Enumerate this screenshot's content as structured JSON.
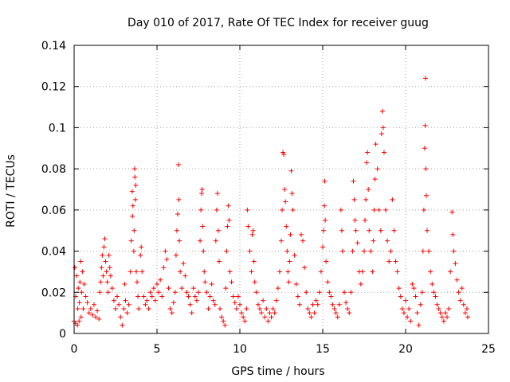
{
  "chart_data": {
    "type": "scatter",
    "title": "Day 010 of 2017, Rate Of TEC Index for receiver guug",
    "xlabel": "GPS time / hours",
    "ylabel": "ROTI / TECUs",
    "xlim": [
      0,
      25
    ],
    "ylim": [
      0,
      0.14
    ],
    "x_ticks": [
      0,
      5,
      10,
      15,
      20,
      25
    ],
    "x_tick_labels": [
      "0",
      "5",
      "10",
      "15",
      "20",
      "25"
    ],
    "y_ticks": [
      0,
      0.02,
      0.04,
      0.06,
      0.08,
      0.1,
      0.12,
      0.14
    ],
    "y_tick_labels": [
      "0",
      "0.02",
      "0.04",
      "0.06",
      "0.08",
      "0.1",
      "0.12",
      "0.14"
    ],
    "grid": true,
    "legend": "none",
    "marker": "+",
    "color": "#ff0000",
    "series": [
      {
        "values": [
          [
            0.0,
            0.006
          ],
          [
            0.05,
            0.032
          ],
          [
            0.08,
            0.005
          ],
          [
            0.1,
            0.018
          ],
          [
            0.15,
            0.028
          ],
          [
            0.2,
            0.004
          ],
          [
            0.22,
            0.012
          ],
          [
            0.25,
            0.022
          ],
          [
            0.3,
            0.006
          ],
          [
            0.32,
            0.015
          ],
          [
            0.35,
            0.025
          ],
          [
            0.4,
            0.035
          ],
          [
            0.42,
            0.008
          ],
          [
            0.45,
            0.02
          ],
          [
            0.5,
            0.03
          ],
          [
            0.55,
            0.012
          ],
          [
            0.6,
            0.024
          ],
          [
            0.7,
            0.018
          ],
          [
            0.8,
            0.015
          ],
          [
            0.9,
            0.01
          ],
          [
            1.0,
            0.012
          ],
          [
            1.1,
            0.009
          ],
          [
            1.2,
            0.014
          ],
          [
            1.3,
            0.008
          ],
          [
            1.4,
            0.011
          ],
          [
            1.5,
            0.007
          ],
          [
            1.55,
            0.02
          ],
          [
            1.6,
            0.025
          ],
          [
            1.65,
            0.032
          ],
          [
            1.7,
            0.038
          ],
          [
            1.75,
            0.028
          ],
          [
            1.8,
            0.042
          ],
          [
            1.85,
            0.046
          ],
          [
            1.9,
            0.035
          ],
          [
            1.95,
            0.03
          ],
          [
            2.0,
            0.025
          ],
          [
            2.05,
            0.02
          ],
          [
            2.1,
            0.038
          ],
          [
            2.15,
            0.032
          ],
          [
            2.2,
            0.028
          ],
          [
            2.3,
            0.022
          ],
          [
            2.4,
            0.016
          ],
          [
            2.5,
            0.012
          ],
          [
            2.6,
            0.018
          ],
          [
            2.7,
            0.014
          ],
          [
            2.8,
            0.008
          ],
          [
            2.9,
            0.004
          ],
          [
            3.0,
            0.012
          ],
          [
            3.05,
            0.024
          ],
          [
            3.1,
            0.016
          ],
          [
            3.2,
            0.01
          ],
          [
            3.3,
            0.014
          ],
          [
            3.4,
            0.03
          ],
          [
            3.45,
            0.045
          ],
          [
            3.5,
            0.069
          ],
          [
            3.52,
            0.057
          ],
          [
            3.55,
            0.062
          ],
          [
            3.6,
            0.04
          ],
          [
            3.62,
            0.05
          ],
          [
            3.65,
            0.08
          ],
          [
            3.67,
            0.076
          ],
          [
            3.7,
            0.065
          ],
          [
            3.72,
            0.072
          ],
          [
            3.75,
            0.03
          ],
          [
            3.8,
            0.025
          ],
          [
            3.85,
            0.018
          ],
          [
            3.9,
            0.012
          ],
          [
            4.0,
            0.038
          ],
          [
            4.05,
            0.042
          ],
          [
            4.1,
            0.03
          ],
          [
            4.2,
            0.018
          ],
          [
            4.3,
            0.014
          ],
          [
            4.4,
            0.016
          ],
          [
            4.5,
            0.012
          ],
          [
            4.6,
            0.02
          ],
          [
            4.7,
            0.018
          ],
          [
            4.8,
            0.022
          ],
          [
            4.9,
            0.016
          ],
          [
            5.0,
            0.024
          ],
          [
            5.1,
            0.02
          ],
          [
            5.2,
            0.026
          ],
          [
            5.3,
            0.018
          ],
          [
            5.4,
            0.032
          ],
          [
            5.5,
            0.04
          ],
          [
            5.6,
            0.036
          ],
          [
            5.7,
            0.022
          ],
          [
            5.8,
            0.012
          ],
          [
            5.9,
            0.01
          ],
          [
            6.0,
            0.015
          ],
          [
            6.1,
            0.02
          ],
          [
            6.15,
            0.038
          ],
          [
            6.2,
            0.05
          ],
          [
            6.25,
            0.058
          ],
          [
            6.3,
            0.082
          ],
          [
            6.32,
            0.065
          ],
          [
            6.35,
            0.045
          ],
          [
            6.4,
            0.03
          ],
          [
            6.5,
            0.022
          ],
          [
            6.6,
            0.034
          ],
          [
            6.7,
            0.028
          ],
          [
            6.8,
            0.02
          ],
          [
            6.9,
            0.018
          ],
          [
            7.0,
            0.014
          ],
          [
            7.1,
            0.01
          ],
          [
            7.2,
            0.022
          ],
          [
            7.3,
            0.018
          ],
          [
            7.4,
            0.016
          ],
          [
            7.5,
            0.02
          ],
          [
            7.6,
            0.045
          ],
          [
            7.65,
            0.06
          ],
          [
            7.7,
            0.068
          ],
          [
            7.72,
            0.07
          ],
          [
            7.75,
            0.052
          ],
          [
            7.8,
            0.04
          ],
          [
            7.85,
            0.03
          ],
          [
            7.9,
            0.025
          ],
          [
            8.0,
            0.02
          ],
          [
            8.1,
            0.012
          ],
          [
            8.2,
            0.018
          ],
          [
            8.3,
            0.024
          ],
          [
            8.4,
            0.016
          ],
          [
            8.5,
            0.014
          ],
          [
            8.55,
            0.045
          ],
          [
            8.6,
            0.06
          ],
          [
            8.65,
            0.068
          ],
          [
            8.7,
            0.05
          ],
          [
            8.75,
            0.035
          ],
          [
            8.8,
            0.012
          ],
          [
            8.9,
            0.008
          ],
          [
            9.0,
            0.006
          ],
          [
            9.1,
            0.004
          ],
          [
            9.15,
            0.022
          ],
          [
            9.2,
            0.04
          ],
          [
            9.25,
            0.052
          ],
          [
            9.3,
            0.062
          ],
          [
            9.35,
            0.055
          ],
          [
            9.4,
            0.03
          ],
          [
            9.5,
            0.025
          ],
          [
            9.6,
            0.018
          ],
          [
            9.7,
            0.015
          ],
          [
            9.8,
            0.012
          ],
          [
            9.9,
            0.018
          ],
          [
            10.0,
            0.014
          ],
          [
            10.1,
            0.01
          ],
          [
            10.2,
            0.008
          ],
          [
            10.3,
            0.006
          ],
          [
            10.4,
            0.012
          ],
          [
            10.45,
            0.06
          ],
          [
            10.5,
            0.052
          ],
          [
            10.6,
            0.04
          ],
          [
            10.7,
            0.03
          ],
          [
            10.75,
            0.048
          ],
          [
            10.8,
            0.05
          ],
          [
            10.85,
            0.035
          ],
          [
            10.9,
            0.025
          ],
          [
            11.0,
            0.02
          ],
          [
            11.1,
            0.014
          ],
          [
            11.2,
            0.012
          ],
          [
            11.3,
            0.01
          ],
          [
            11.4,
            0.016
          ],
          [
            11.5,
            0.008
          ],
          [
            11.6,
            0.012
          ],
          [
            11.7,
            0.006
          ],
          [
            11.8,
            0.01
          ],
          [
            11.9,
            0.008
          ],
          [
            12.0,
            0.012
          ],
          [
            12.1,
            0.01
          ],
          [
            12.2,
            0.016
          ],
          [
            12.3,
            0.022
          ],
          [
            12.4,
            0.03
          ],
          [
            12.5,
            0.045
          ],
          [
            12.55,
            0.06
          ],
          [
            12.6,
            0.088
          ],
          [
            12.65,
            0.087
          ],
          [
            12.7,
            0.07
          ],
          [
            12.75,
            0.064
          ],
          [
            12.8,
            0.052
          ],
          [
            12.85,
            0.04
          ],
          [
            12.9,
            0.03
          ],
          [
            12.95,
            0.025
          ],
          [
            13.0,
            0.035
          ],
          [
            13.05,
            0.048
          ],
          [
            13.1,
            0.079
          ],
          [
            13.15,
            0.068
          ],
          [
            13.2,
            0.06
          ],
          [
            13.3,
            0.038
          ],
          [
            13.4,
            0.024
          ],
          [
            13.5,
            0.018
          ],
          [
            13.6,
            0.014
          ],
          [
            13.7,
            0.048
          ],
          [
            13.8,
            0.045
          ],
          [
            13.9,
            0.032
          ],
          [
            14.0,
            0.02
          ],
          [
            14.1,
            0.012
          ],
          [
            14.2,
            0.01
          ],
          [
            14.3,
            0.008
          ],
          [
            14.4,
            0.014
          ],
          [
            14.5,
            0.01
          ],
          [
            14.6,
            0.016
          ],
          [
            14.7,
            0.014
          ],
          [
            14.8,
            0.02
          ],
          [
            14.9,
            0.03
          ],
          [
            15.0,
            0.042
          ],
          [
            15.05,
            0.05
          ],
          [
            15.1,
            0.062
          ],
          [
            15.12,
            0.074
          ],
          [
            15.15,
            0.055
          ],
          [
            15.2,
            0.035
          ],
          [
            15.3,
            0.025
          ],
          [
            15.4,
            0.02
          ],
          [
            15.5,
            0.018
          ],
          [
            15.6,
            0.014
          ],
          [
            15.7,
            0.012
          ],
          [
            15.8,
            0.01
          ],
          [
            15.9,
            0.008
          ],
          [
            16.0,
            0.014
          ],
          [
            16.1,
            0.06
          ],
          [
            16.15,
            0.05
          ],
          [
            16.2,
            0.04
          ],
          [
            16.3,
            0.02
          ],
          [
            16.4,
            0.015
          ],
          [
            16.5,
            0.012
          ],
          [
            16.6,
            0.01
          ],
          [
            16.7,
            0.02
          ],
          [
            16.8,
            0.04
          ],
          [
            16.85,
            0.074
          ],
          [
            16.9,
            0.065
          ],
          [
            16.95,
            0.055
          ],
          [
            17.0,
            0.05
          ],
          [
            17.1,
            0.044
          ],
          [
            17.2,
            0.03
          ],
          [
            17.3,
            0.024
          ],
          [
            17.4,
            0.03
          ],
          [
            17.5,
            0.04
          ],
          [
            17.55,
            0.055
          ],
          [
            17.6,
            0.065
          ],
          [
            17.65,
            0.083
          ],
          [
            17.7,
            0.088
          ],
          [
            17.75,
            0.07
          ],
          [
            17.8,
            0.05
          ],
          [
            17.9,
            0.04
          ],
          [
            18.0,
            0.03
          ],
          [
            18.05,
            0.045
          ],
          [
            18.1,
            0.06
          ],
          [
            18.15,
            0.075
          ],
          [
            18.2,
            0.092
          ],
          [
            18.3,
            0.08
          ],
          [
            18.4,
            0.06
          ],
          [
            18.5,
            0.05
          ],
          [
            18.55,
            0.097
          ],
          [
            18.6,
            0.108
          ],
          [
            18.65,
            0.1
          ],
          [
            18.7,
            0.088
          ],
          [
            18.8,
            0.06
          ],
          [
            18.9,
            0.045
          ],
          [
            19.0,
            0.035
          ],
          [
            19.1,
            0.04
          ],
          [
            19.2,
            0.065
          ],
          [
            19.3,
            0.05
          ],
          [
            19.4,
            0.035
          ],
          [
            19.5,
            0.03
          ],
          [
            19.6,
            0.022
          ],
          [
            19.7,
            0.018
          ],
          [
            19.8,
            0.012
          ],
          [
            19.9,
            0.01
          ],
          [
            20.0,
            0.016
          ],
          [
            20.1,
            0.008
          ],
          [
            20.2,
            0.012
          ],
          [
            20.3,
            0.006
          ],
          [
            20.4,
            0.024
          ],
          [
            20.5,
            0.022
          ],
          [
            20.6,
            0.018
          ],
          [
            20.7,
            0.01
          ],
          [
            20.8,
            0.004
          ],
          [
            20.9,
            0.014
          ],
          [
            21.0,
            0.02
          ],
          [
            21.05,
            0.04
          ],
          [
            21.1,
            0.06
          ],
          [
            21.15,
            0.09
          ],
          [
            21.18,
            0.101
          ],
          [
            21.2,
            0.124
          ],
          [
            21.22,
            0.08
          ],
          [
            21.25,
            0.067
          ],
          [
            21.3,
            0.05
          ],
          [
            21.4,
            0.04
          ],
          [
            21.5,
            0.03
          ],
          [
            21.6,
            0.024
          ],
          [
            21.7,
            0.02
          ],
          [
            21.8,
            0.018
          ],
          [
            21.9,
            0.014
          ],
          [
            22.0,
            0.012
          ],
          [
            22.1,
            0.01
          ],
          [
            22.2,
            0.008
          ],
          [
            22.3,
            0.006
          ],
          [
            22.4,
            0.01
          ],
          [
            22.5,
            0.008
          ],
          [
            22.6,
            0.012
          ],
          [
            22.7,
            0.03
          ],
          [
            22.8,
            0.059
          ],
          [
            22.85,
            0.048
          ],
          [
            22.9,
            0.04
          ],
          [
            23.0,
            0.034
          ],
          [
            23.1,
            0.026
          ],
          [
            23.2,
            0.02
          ],
          [
            23.3,
            0.016
          ],
          [
            23.4,
            0.022
          ],
          [
            23.5,
            0.014
          ],
          [
            23.6,
            0.01
          ],
          [
            23.7,
            0.012
          ],
          [
            23.75,
            0.008
          ]
        ]
      }
    ]
  }
}
